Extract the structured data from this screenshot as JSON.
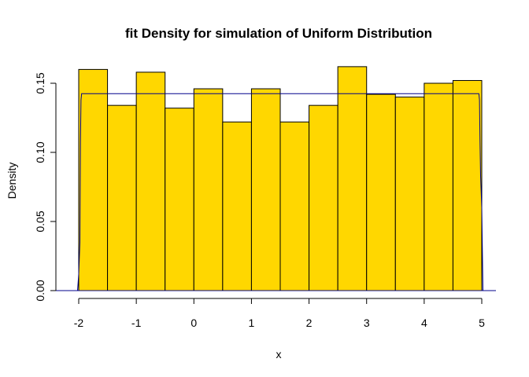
{
  "chart_data": {
    "type": "bar",
    "title": "fit Density for simulation of Uniform Distribution",
    "xlabel": "x",
    "ylabel": "Density",
    "bins": [
      {
        "x0": -2.0,
        "x1": -1.5,
        "density": 0.16
      },
      {
        "x0": -1.5,
        "x1": -1.0,
        "density": 0.134
      },
      {
        "x0": -1.0,
        "x1": -0.5,
        "density": 0.158
      },
      {
        "x0": -0.5,
        "x1": 0.0,
        "density": 0.132
      },
      {
        "x0": 0.0,
        "x1": 0.5,
        "density": 0.146
      },
      {
        "x0": 0.5,
        "x1": 1.0,
        "density": 0.122
      },
      {
        "x0": 1.0,
        "x1": 1.5,
        "density": 0.146
      },
      {
        "x0": 1.5,
        "x1": 2.0,
        "density": 0.122
      },
      {
        "x0": 2.0,
        "x1": 2.5,
        "density": 0.134
      },
      {
        "x0": 2.5,
        "x1": 3.0,
        "density": 0.162
      },
      {
        "x0": 3.0,
        "x1": 3.5,
        "density": 0.142
      },
      {
        "x0": 3.5,
        "x1": 4.0,
        "density": 0.14
      },
      {
        "x0": 4.0,
        "x1": 4.5,
        "density": 0.15
      },
      {
        "x0": 4.5,
        "x1": 5.0,
        "density": 0.152
      }
    ],
    "density_curve": {
      "x": [
        -2.02,
        -2.0,
        -1.98,
        -1.97,
        -1.96,
        -1.95,
        4.95,
        4.96,
        4.97,
        4.98,
        5.0,
        5.02
      ],
      "y": [
        0.0,
        0.012,
        0.035,
        0.107,
        0.138,
        0.1425,
        0.1425,
        0.138,
        0.107,
        0.083,
        0.06,
        0.0
      ]
    },
    "xlim": [
      -2.0,
      5.0
    ],
    "ylim": [
      0.0,
      0.15
    ],
    "xticks": [
      "-2",
      "-1",
      "0",
      "1",
      "2",
      "3",
      "4",
      "5"
    ],
    "yticks": [
      "0.00",
      "0.05",
      "0.10",
      "0.15"
    ],
    "grid": false,
    "legend": false,
    "colors": {
      "bar_fill": "#FFD700",
      "bar_border": "#000000",
      "curve": "#00008B",
      "axis": "#000000"
    }
  }
}
